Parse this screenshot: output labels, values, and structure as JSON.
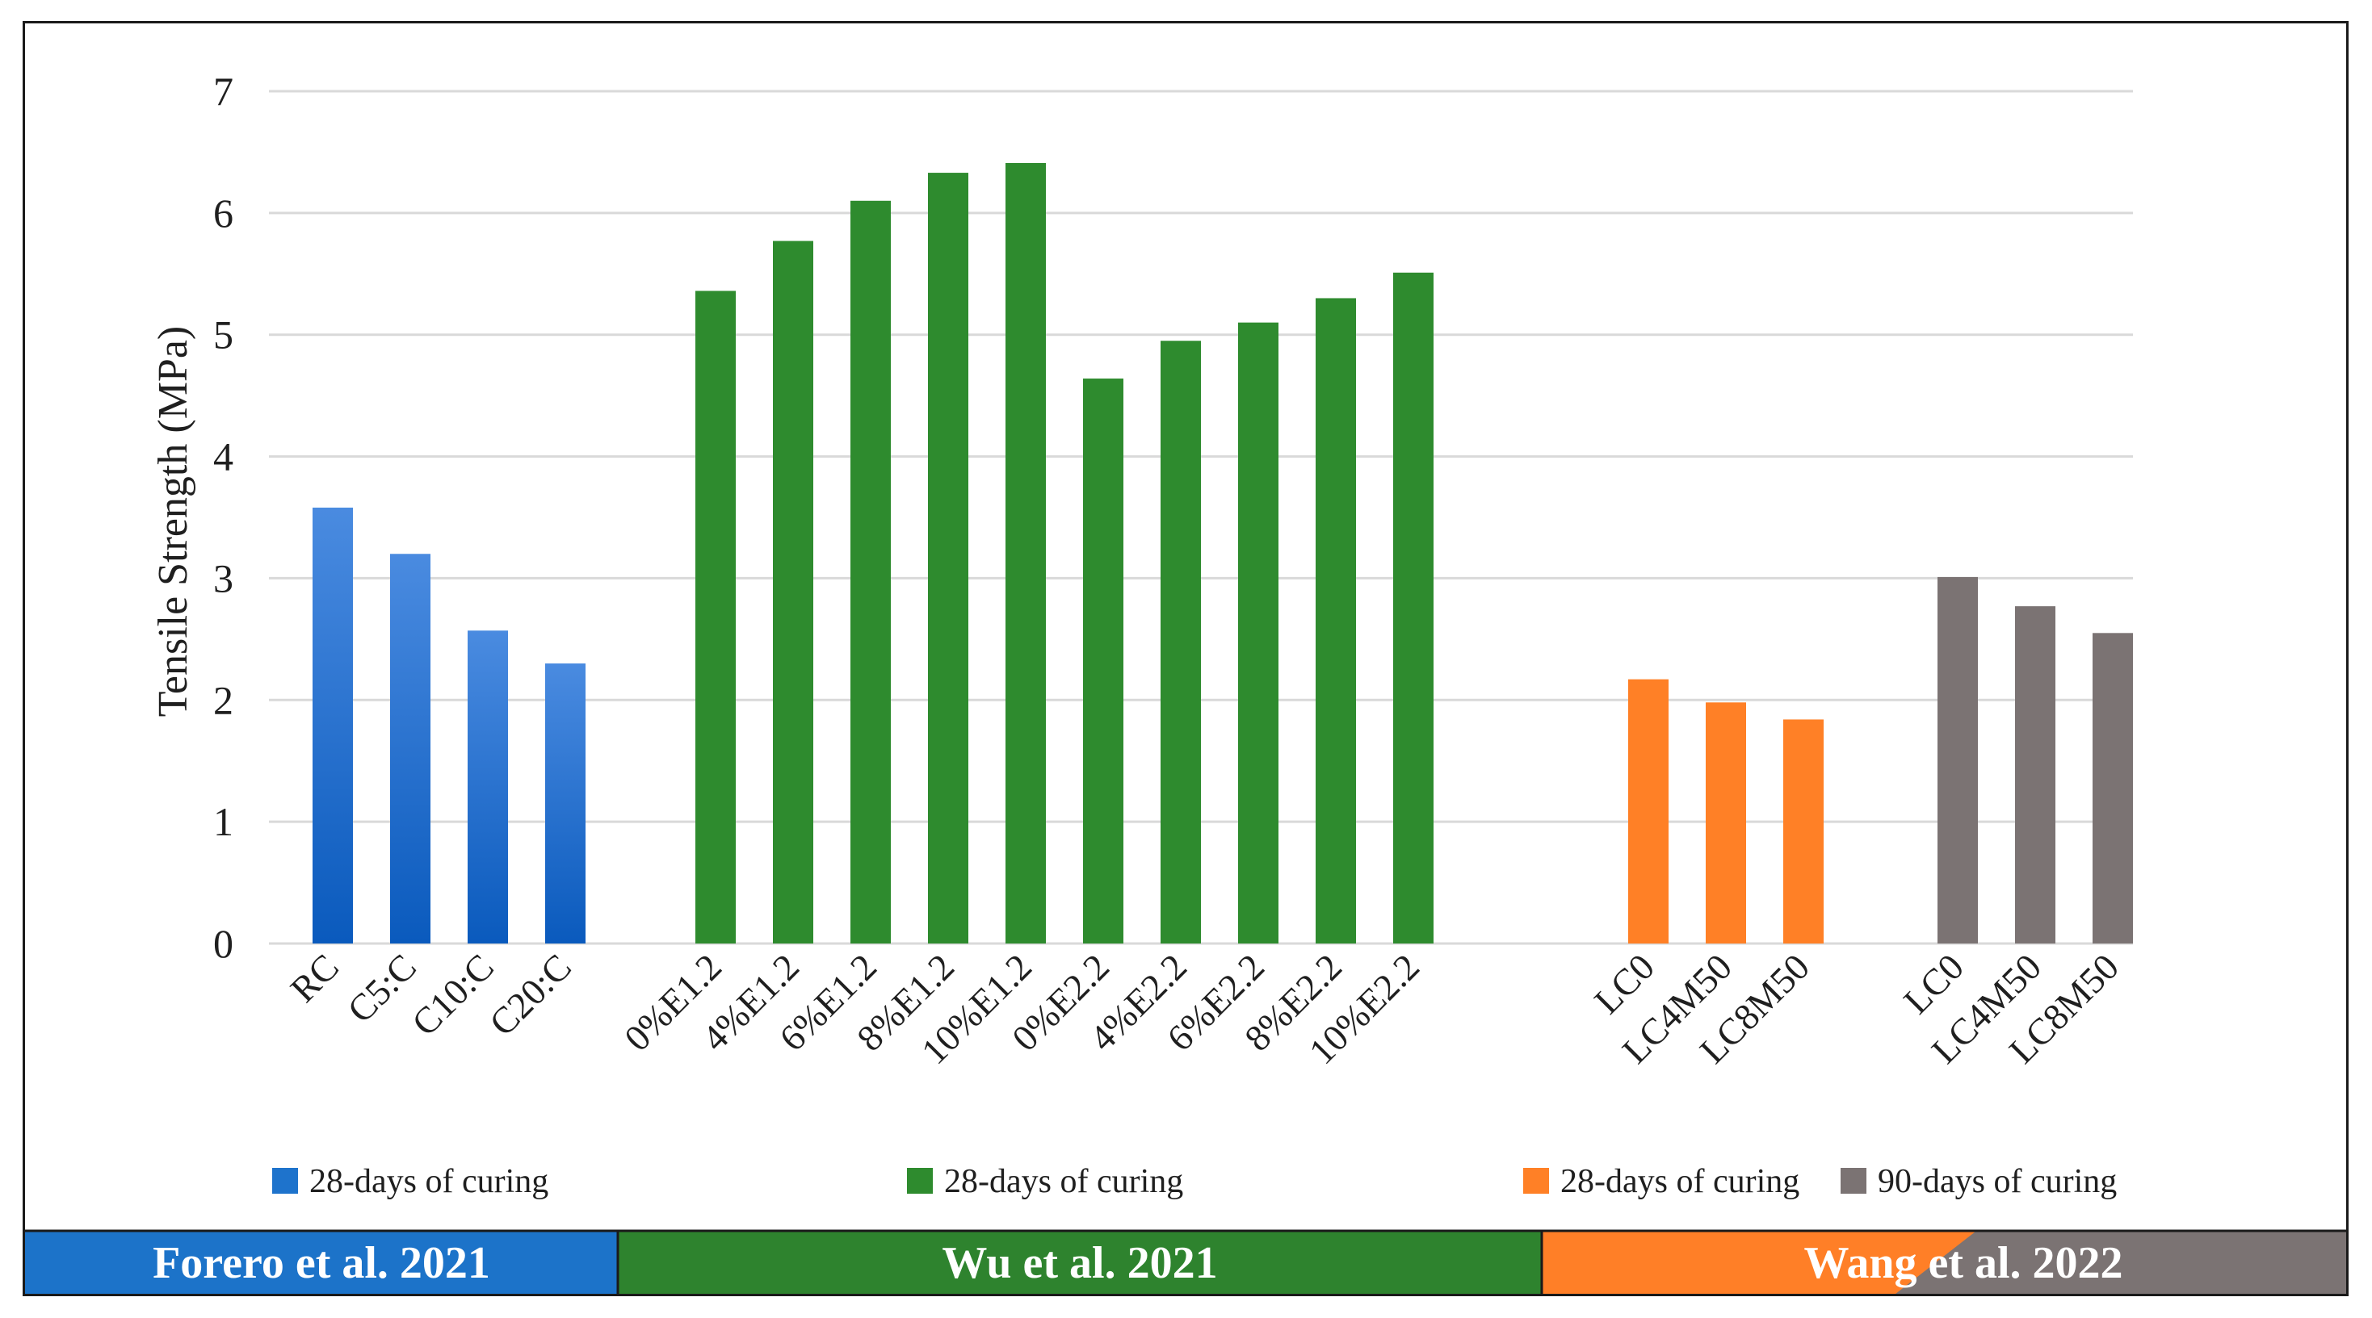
{
  "chart_data": {
    "type": "bar",
    "title": "",
    "xlabel": "",
    "ylabel": "Tensile Strength (MPa)",
    "ylim": [
      0,
      7
    ],
    "yticks": [
      0,
      1,
      2,
      3,
      4,
      5,
      6,
      7
    ],
    "grid": true,
    "groups": [
      {
        "study": "Forero et al. 2021",
        "legend": "28-days of curing",
        "color": "#2f7ad3",
        "color_dark": "#0b5cbf",
        "categories": [
          "RC",
          "C5:C",
          "C10:C",
          "C20:C"
        ],
        "values": [
          3.58,
          3.2,
          2.57,
          2.3
        ]
      },
      {
        "study": "Wu et al. 2021",
        "legend": "28-days of curing",
        "color": "#2e8b2e",
        "color_dark": "#2a7f2a",
        "categories": [
          "0%E1.2",
          "4%E1.2",
          "6%E1.2",
          "8%E1.2",
          "10%E1.2",
          "0%E2.2",
          "4%E2.2",
          "6%E2.2",
          "8%E2.2",
          "10%E2.2"
        ],
        "values": [
          5.36,
          5.77,
          6.1,
          6.33,
          6.41,
          4.64,
          4.95,
          5.1,
          5.3,
          5.51
        ]
      },
      {
        "study": "Wang et al. 2022",
        "legend": "28-days of curing",
        "color": "#ff8026",
        "color_dark": "#ff7b1c",
        "categories": [
          "LC0",
          "LC4M50",
          "LC8M50"
        ],
        "values": [
          2.17,
          1.98,
          1.84
        ]
      },
      {
        "study": "Wang et al. 2022",
        "legend": "90-days of curing",
        "color": "#7b7373",
        "color_dark": "#726a6a",
        "categories": [
          "LC0",
          "LC4M50",
          "LC8M50"
        ],
        "values": [
          3.01,
          2.77,
          2.55
        ]
      }
    ]
  },
  "bands": [
    {
      "label": "Forero et al. 2021",
      "color": "#1c73c9"
    },
    {
      "label": "Wu et al. 2021",
      "color": "#2e832e"
    },
    {
      "label": "Wang et al. 2022",
      "color": "#ff7f27",
      "color2": "#7b7373"
    }
  ]
}
